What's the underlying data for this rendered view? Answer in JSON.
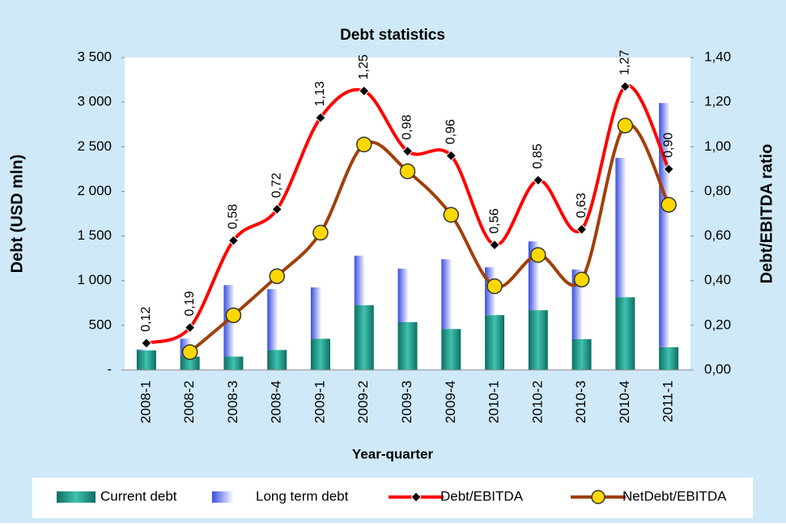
{
  "chart_data": {
    "type": "bar",
    "title": "Debt statistics",
    "x_label": "Year-quarter",
    "y_label": "Debt (USD mln)",
    "y2_label": "Debt/EBITDA ratio",
    "categories": [
      "2008-1",
      "2008-2",
      "2008-3",
      "2008-4",
      "2009-1",
      "2009-2",
      "2009-3",
      "2009-4",
      "2010-1",
      "2010-2",
      "2010-3",
      "2010-4",
      "2011-1"
    ],
    "series": [
      {
        "name": "Current debt",
        "type": "bar",
        "color": "#1f9d8c",
        "values": [
          220,
          150,
          150,
          225,
          350,
          725,
          535,
          460,
          615,
          670,
          345,
          815,
          255
        ]
      },
      {
        "name": "Long term debt",
        "type": "bar",
        "color": "#3a4ee0",
        "values": [
          10,
          200,
          800,
          680,
          575,
          555,
          600,
          780,
          535,
          770,
          780,
          1560,
          2735
        ]
      },
      {
        "name": "Debt/EBITDA",
        "type": "line",
        "axis": "y2",
        "color": "#ff0000",
        "values": [
          0.12,
          0.19,
          0.58,
          0.72,
          1.13,
          1.25,
          0.98,
          0.96,
          0.56,
          0.85,
          0.63,
          1.27,
          0.9
        ],
        "value_labels": [
          "0,12",
          "0,19",
          "0,58",
          "0,72",
          "1,13",
          "1,25",
          "0,98",
          "0,96",
          "0,56",
          "0,85",
          "0,63",
          "1,27",
          "0,90"
        ]
      },
      {
        "name": "NetDebt/EBITDA",
        "type": "line",
        "axis": "y2",
        "color": "#a0400a",
        "values": [
          null,
          0.08,
          0.245,
          0.42,
          0.615,
          1.01,
          0.89,
          0.695,
          0.375,
          0.515,
          0.405,
          1.095,
          0.74
        ]
      }
    ],
    "ylim": [
      0,
      3500
    ],
    "yticks": [
      {
        "value": 0,
        "label": "-"
      },
      500,
      {
        "value": 1000,
        "label": "1 000"
      },
      {
        "value": 1500,
        "label": "1 500"
      },
      {
        "value": 2000,
        "label": "2 000"
      },
      {
        "value": 2500,
        "label": "2 500"
      },
      {
        "value": 3000,
        "label": "3 000"
      },
      {
        "value": 3500,
        "label": "3 500"
      }
    ],
    "y2lim": [
      0,
      1.4
    ],
    "y2ticks": [
      {
        "value": 0,
        "label": "0,00"
      },
      {
        "value": 0.2,
        "label": "0,20"
      },
      {
        "value": 0.4,
        "label": "0,40"
      },
      {
        "value": 0.6,
        "label": "0,60"
      },
      {
        "value": 0.8,
        "label": "0,80"
      },
      {
        "value": 1.0,
        "label": "1,00"
      },
      {
        "value": 1.2,
        "label": "1,20"
      },
      {
        "value": 1.4,
        "label": "1,40"
      }
    ],
    "legend": "bottom"
  }
}
